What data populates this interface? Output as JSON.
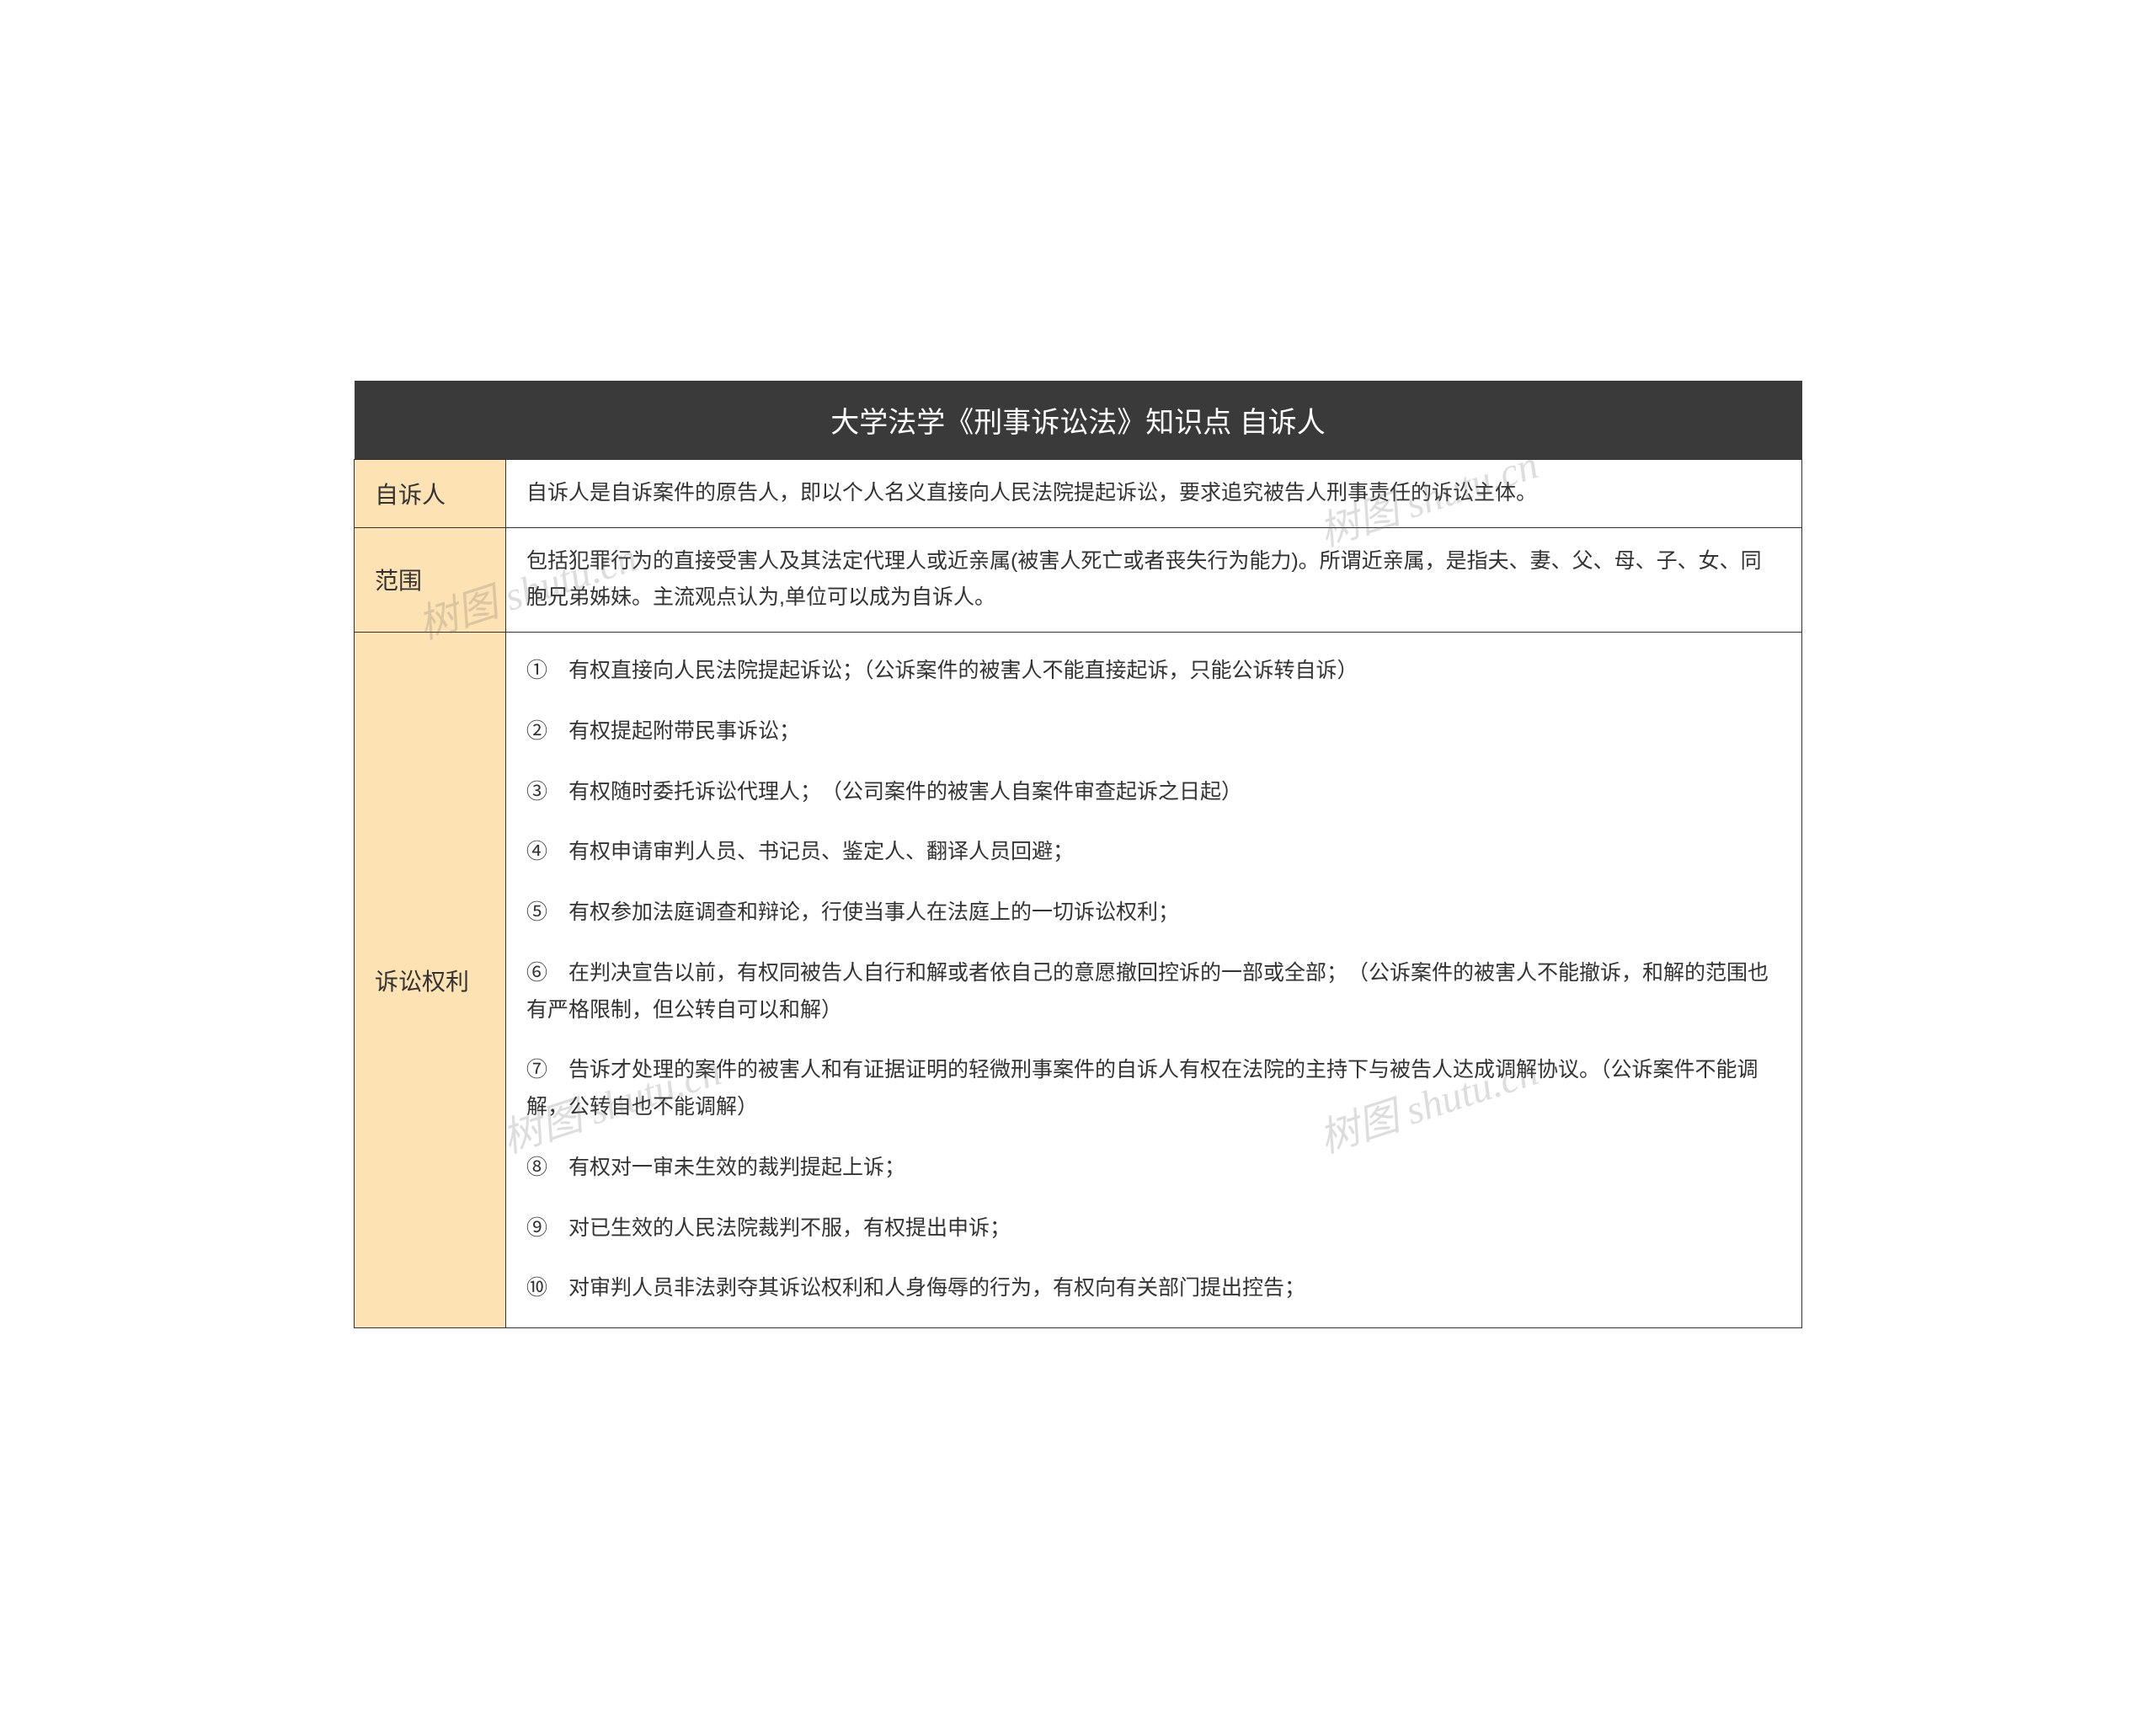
{
  "title": "大学法学《刑事诉讼法》知识点 自诉人",
  "watermark_text": "树图 shutu.cn",
  "colors": {
    "header_bg": "#3a3a3a",
    "header_text": "#ffffff",
    "label_bg": "#fde2b3",
    "border": "#333333",
    "text": "#333333",
    "watermark": "rgba(100,100,100,0.22)"
  },
  "typography": {
    "title_fontsize": 34,
    "label_fontsize": 28,
    "content_fontsize": 25,
    "watermark_fontsize": 48
  },
  "rows": [
    {
      "label": "自诉人",
      "content": "自诉人是自诉案件的原告人，即以个人名义直接向人民法院提起诉讼，要求追究被告人刑事责任的诉讼主体。"
    },
    {
      "label": "范围",
      "content": "包括犯罪行为的直接受害人及其法定代理人或近亲属(被害人死亡或者丧失行为能力)。所谓近亲属，是指夫、妻、父、母、子、女、同胞兄弟姊妹。主流观点认为,单位可以成为自诉人。"
    }
  ],
  "rights": {
    "label": "诉讼权利",
    "items": [
      "①　有权直接向人民法院提起诉讼；（公诉案件的被害人不能直接起诉，只能公诉转自诉）",
      "②　有权提起附带民事诉讼；",
      "③　有权随时委托诉讼代理人；　（公司案件的被害人自案件审查起诉之日起）",
      "④　有权申请审判人员、书记员、鉴定人、翻译人员回避；",
      "⑤　有权参加法庭调查和辩论，行使当事人在法庭上的一切诉讼权利；",
      "⑥　在判决宣告以前，有权同被告人自行和解或者依自己的意愿撤回控诉的一部或全部；　（公诉案件的被害人不能撤诉，和解的范围也有严格限制，但公转自可以和解）",
      "⑦　告诉才处理的案件的被害人和有证据证明的轻微刑事案件的自诉人有权在法院的主持下与被告人达成调解协议。（公诉案件不能调解，公转自也不能调解）",
      "⑧　有权对一审未生效的裁判提起上诉；",
      "⑨　对已生效的人民法院裁判不服，有权提出申诉；",
      "⑩　对审判人员非法剥夺其诉讼权利和人身侮辱的行为，有权向有关部门提出控告；"
    ]
  }
}
